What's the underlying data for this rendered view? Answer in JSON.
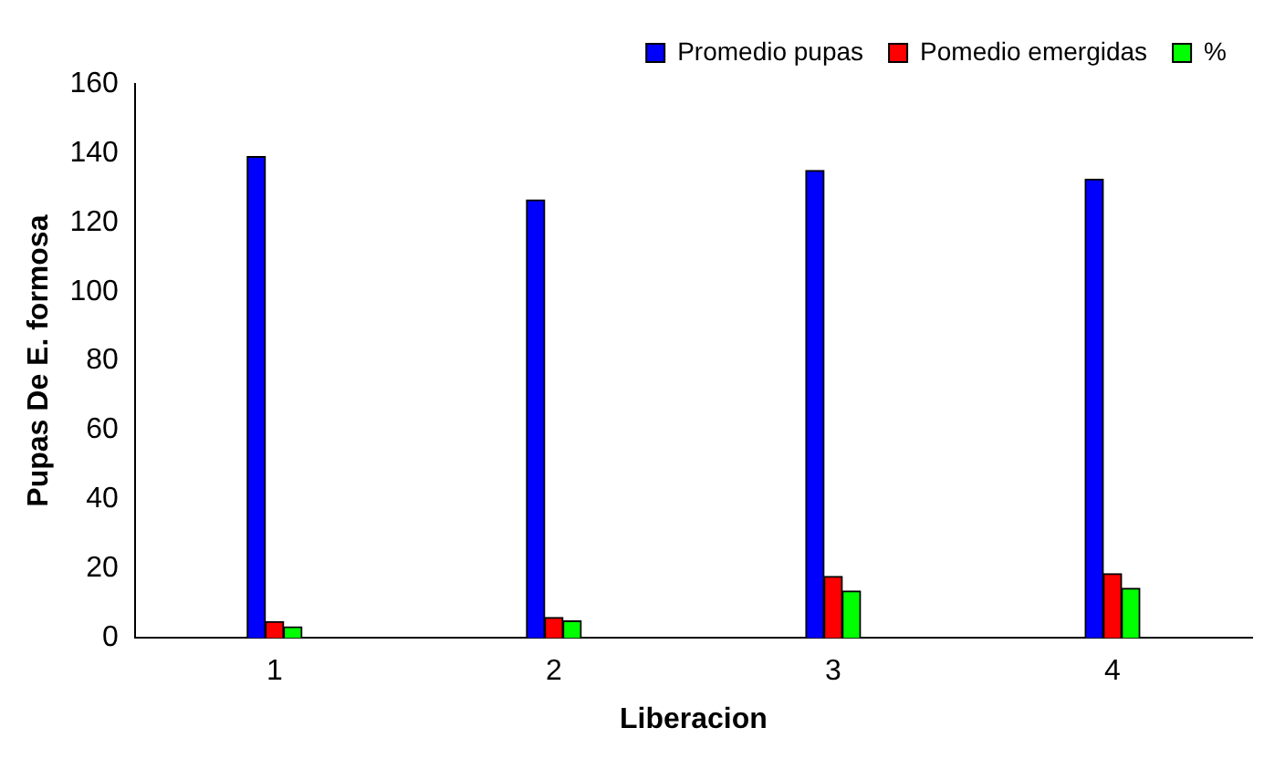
{
  "chart_data": {
    "type": "bar",
    "xlabel": "Liberacion",
    "ylabel": "Pupas De E. formosa",
    "categories": [
      "1",
      "2",
      "3",
      "4"
    ],
    "series": [
      {
        "name": "Promedio pupas",
        "color": "#0000ff",
        "values": [
          139,
          126.5,
          135,
          132.5
        ]
      },
      {
        "name": "Pomedio emergidas",
        "color": "#ff0000",
        "values": [
          4.7,
          5.9,
          17.7,
          18.5
        ]
      },
      {
        "name": "%",
        "color": "#00ff00",
        "values": [
          3.2,
          4.9,
          13.5,
          14.3
        ]
      }
    ],
    "ylim": [
      0,
      160
    ],
    "yticks": [
      0,
      20,
      40,
      60,
      80,
      100,
      120,
      140,
      160
    ],
    "grid": false,
    "legend": "top"
  }
}
